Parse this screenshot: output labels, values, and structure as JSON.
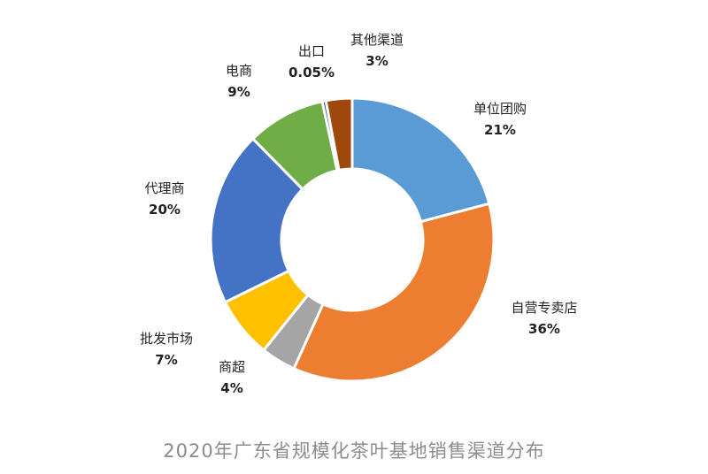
{
  "chart_data": {
    "type": "pie",
    "donut": true,
    "title": "2020年广东省规模化茶叶基地销售渠道分布",
    "start_angle_deg": 0,
    "direction": "clockwise",
    "slices": [
      {
        "label": "单位团购",
        "value": 21,
        "display": "21%",
        "color": "#5b9bd5"
      },
      {
        "label": "自营专卖店",
        "value": 36,
        "display": "36%",
        "color": "#ed7d31"
      },
      {
        "label": "商超",
        "value": 4,
        "display": "4%",
        "color": "#a5a5a5"
      },
      {
        "label": "批发市场",
        "value": 7,
        "display": "7%",
        "color": "#ffc000"
      },
      {
        "label": "代理商",
        "value": 20,
        "display": "20%",
        "color": "#4472c4"
      },
      {
        "label": "电商",
        "value": 9,
        "display": "9%",
        "color": "#70ad47"
      },
      {
        "label": "出口",
        "value": 0.05,
        "display": "0.05%",
        "color": "#264478"
      },
      {
        "label": "其他渠道",
        "value": 3,
        "display": "3%",
        "color": "#9e480e"
      }
    ]
  }
}
